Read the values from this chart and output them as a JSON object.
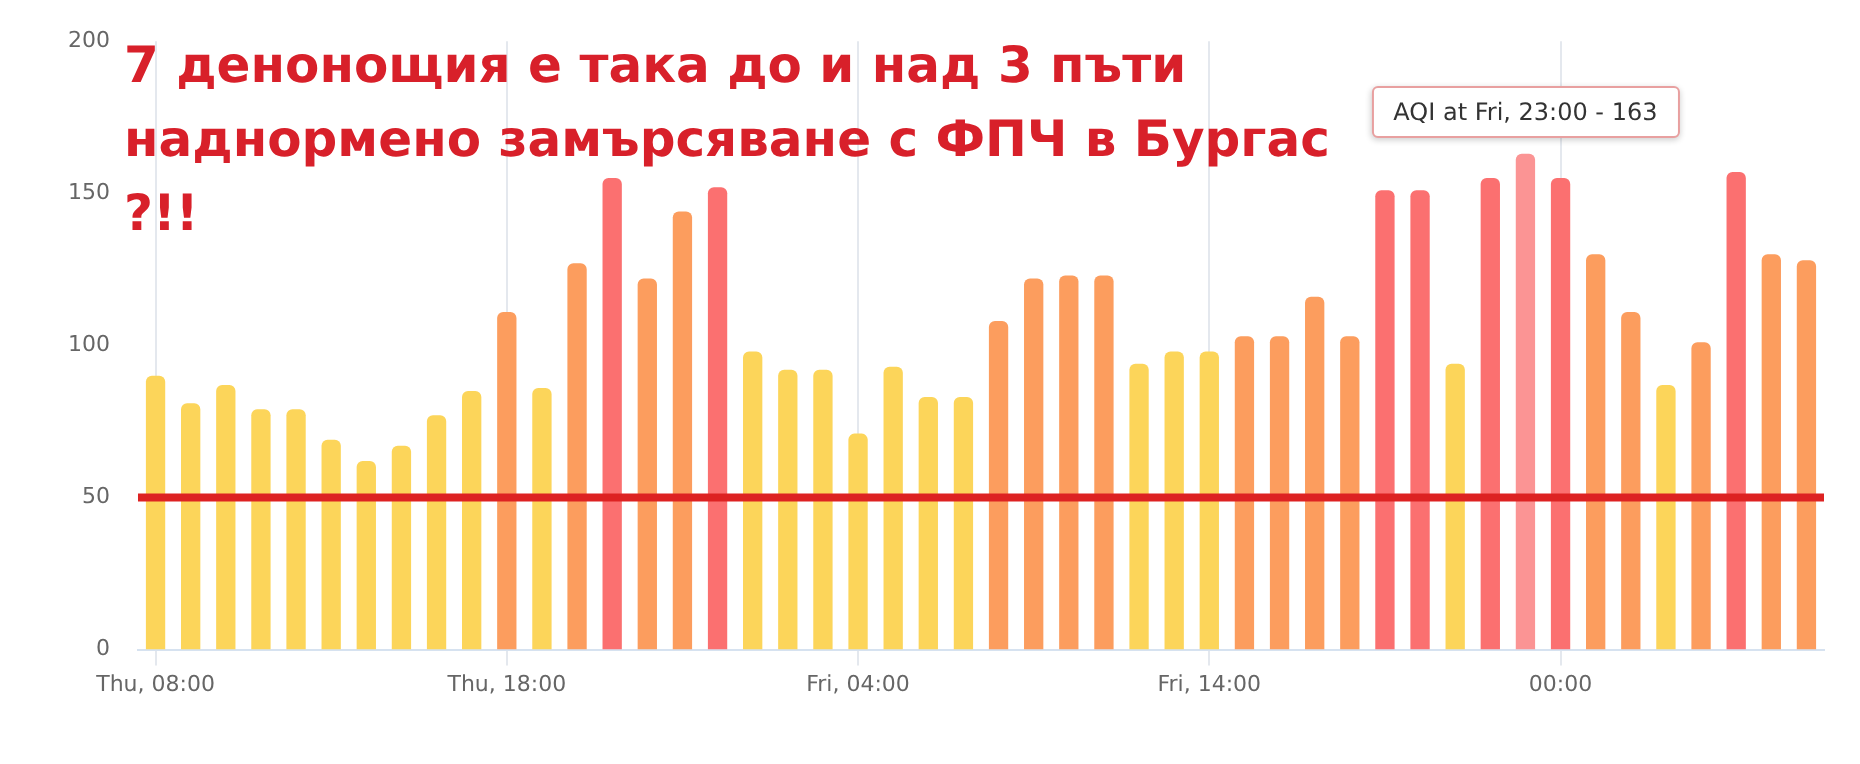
{
  "chart_data": {
    "type": "bar",
    "title": "7 денонощия е така до и над 3 пъти наднормено замърсяване с ФПЧ в Бургас ?!!",
    "categories": [
      "Thu, 08:00",
      null,
      null,
      null,
      null,
      null,
      null,
      null,
      null,
      null,
      "Thu, 18:00",
      null,
      null,
      null,
      null,
      null,
      null,
      null,
      null,
      null,
      "Fri, 04:00",
      null,
      null,
      null,
      null,
      null,
      null,
      null,
      null,
      null,
      "Fri, 14:00",
      null,
      null,
      null,
      null,
      null,
      null,
      null,
      null,
      null,
      "00:00",
      null,
      null,
      null,
      null,
      null,
      null,
      null
    ],
    "values": [
      90,
      81,
      87,
      79,
      79,
      69,
      62,
      67,
      77,
      85,
      111,
      86,
      127,
      155,
      122,
      144,
      152,
      98,
      92,
      92,
      71,
      93,
      83,
      83,
      108,
      122,
      123,
      123,
      94,
      98,
      98,
      103,
      103,
      116,
      103,
      151,
      151,
      94,
      155,
      163,
      155,
      130,
      111,
      87,
      101,
      157,
      130,
      128
    ],
    "colors": [
      "#fcd55a",
      "#fcd55a",
      "#fcd55a",
      "#fcd55a",
      "#fcd55a",
      "#fcd55a",
      "#fcd55a",
      "#fcd55a",
      "#fcd55a",
      "#fcd55a",
      "#fc9d5e",
      "#fcd55a",
      "#fc9d5e",
      "#fb7070",
      "#fc9d5e",
      "#fc9d5e",
      "#fb7070",
      "#fcd55a",
      "#fcd55a",
      "#fcd55a",
      "#fcd55a",
      "#fcd55a",
      "#fcd55a",
      "#fcd55a",
      "#fc9d5e",
      "#fc9d5e",
      "#fc9d5e",
      "#fc9d5e",
      "#fcd55a",
      "#fcd55a",
      "#fcd55a",
      "#fc9d5e",
      "#fc9d5e",
      "#fc9d5e",
      "#fc9d5e",
      "#fb7070",
      "#fb7070",
      "#fcd55a",
      "#fb7070",
      "#fb9494",
      "#fb7070",
      "#fc9d5e",
      "#fc9d5e",
      "#fcd55a",
      "#fc9d5e",
      "#fb7070",
      "#fc9d5e",
      "#fc9d5e"
    ],
    "ylim": [
      0,
      200
    ],
    "yticks": [
      0,
      50,
      100,
      150,
      200
    ],
    "grid": "x",
    "ref_lines": [
      {
        "axis": "y",
        "value": 50,
        "color": "#dd2222"
      }
    ],
    "annotations": [
      {
        "text": "AQI at Fri, 23:00 - 163",
        "y": 163
      }
    ]
  }
}
